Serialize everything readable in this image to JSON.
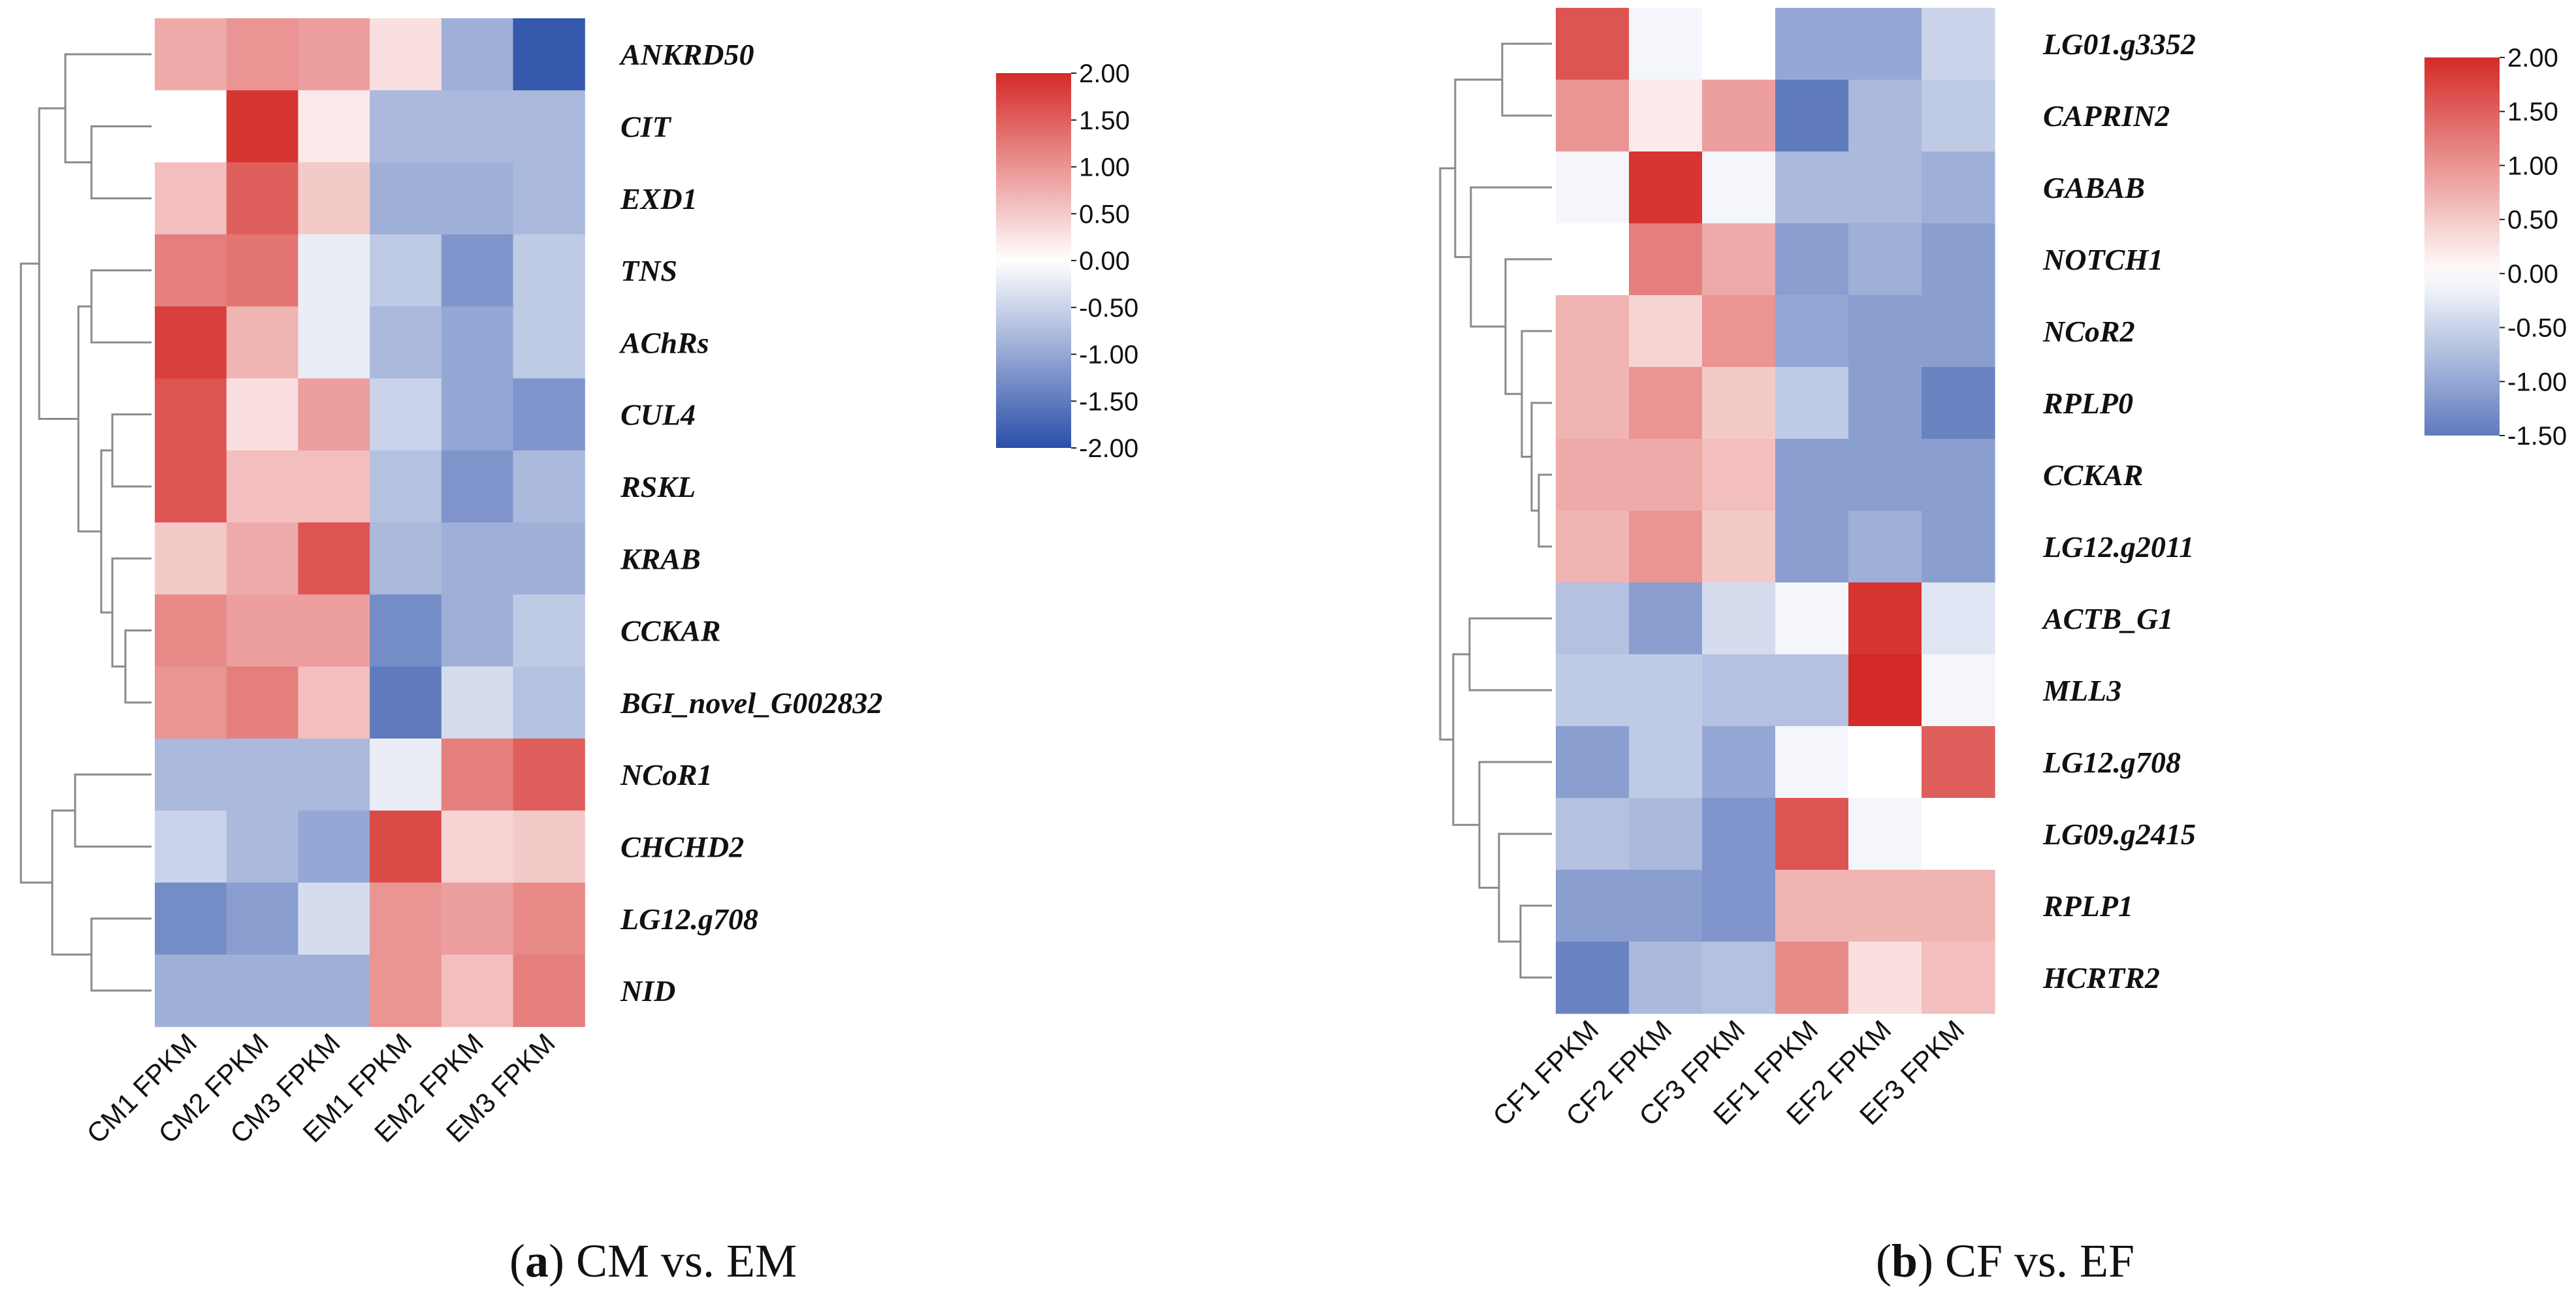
{
  "chart_data": [
    {
      "type": "heatmap",
      "caption": {
        "letter": "a",
        "open": "(",
        "close": ")",
        "text": "CM vs. EM"
      },
      "columns": [
        "CM1 FPKM",
        "CM2 FPKM",
        "CM3 FPKM",
        "EM1 FPKM",
        "EM2 FPKM",
        "EM3 FPKM"
      ],
      "rows": [
        "ANKRD50",
        "CIT",
        "EXD1",
        "TNS",
        "AChRs",
        "CUL4",
        "RSKL",
        "KRAB",
        "CCKAR",
        "BGI_novel_G002832",
        "NCoR1",
        "CHCHD2",
        "LG12.g708",
        "NID"
      ],
      "values": [
        [
          0.8,
          1.0,
          0.9,
          0.3,
          -0.9,
          -1.9
        ],
        [
          0.0,
          1.9,
          0.2,
          -0.8,
          -0.8,
          -0.8
        ],
        [
          0.6,
          1.5,
          0.5,
          -0.9,
          -0.9,
          -0.8
        ],
        [
          1.2,
          1.3,
          -0.2,
          -0.6,
          -1.2,
          -0.6
        ],
        [
          1.8,
          0.7,
          -0.2,
          -0.8,
          -1.0,
          -0.6
        ],
        [
          1.6,
          0.3,
          0.9,
          -0.5,
          -1.0,
          -1.2
        ],
        [
          1.6,
          0.6,
          0.6,
          -0.7,
          -1.2,
          -0.8
        ],
        [
          0.5,
          0.8,
          1.6,
          -0.8,
          -0.9,
          -0.9
        ],
        [
          1.1,
          0.9,
          0.9,
          -1.3,
          -0.9,
          -0.6
        ],
        [
          1.0,
          1.2,
          0.6,
          -1.5,
          -0.4,
          -0.7
        ],
        [
          -0.8,
          -0.8,
          -0.8,
          -0.2,
          1.2,
          1.5
        ],
        [
          -0.5,
          -0.8,
          -1.0,
          1.7,
          0.4,
          0.5
        ],
        [
          -1.3,
          -1.1,
          -0.4,
          1.0,
          0.9,
          1.1
        ],
        [
          -0.9,
          -0.9,
          -0.9,
          1.0,
          0.6,
          1.2
        ]
      ],
      "colorbar": {
        "min": -2.0,
        "max": 2.0,
        "ticks": [
          "2.00",
          "1.50",
          "1.00",
          "0.50",
          "0.00",
          "-0.50",
          "-1.00",
          "-1.50",
          "-2.00"
        ]
      },
      "colors": {
        "low": "#2a4fa8",
        "mid": "#ffffff",
        "high": "#d42a27"
      }
    },
    {
      "type": "heatmap",
      "caption": {
        "letter": "b",
        "open": "(",
        "close": ")",
        "text": "CF vs. EF"
      },
      "columns": [
        "CF1 FPKM",
        "CF2 FPKM",
        "CF3 FPKM",
        "EF1 FPKM",
        "EF2 FPKM",
        "EF3 FPKM"
      ],
      "rows": [
        "LG01.g3352",
        "CAPRIN2",
        "GABAB",
        "NOTCH1",
        "NCoR2",
        "RPLP0",
        "CCKAR",
        "LG12.g2011",
        "ACTB_G1",
        "MLL3",
        "LG12.g708",
        "LG09.g2415",
        "RPLP1",
        "HCRTR2"
      ],
      "values": [
        [
          1.6,
          -0.1,
          0.0,
          -1.0,
          -1.0,
          -0.5
        ],
        [
          1.0,
          0.2,
          0.9,
          -1.5,
          -0.8,
          -0.6
        ],
        [
          -0.1,
          1.9,
          -0.1,
          -0.8,
          -0.8,
          -0.9
        ],
        [
          0.0,
          1.2,
          0.8,
          -1.1,
          -0.9,
          -1.1
        ],
        [
          0.7,
          0.4,
          1.0,
          -1.0,
          -1.1,
          -1.1
        ],
        [
          0.7,
          1.0,
          0.5,
          -0.6,
          -1.1,
          -1.4
        ],
        [
          0.8,
          0.8,
          0.6,
          -1.1,
          -1.1,
          -1.1
        ],
        [
          0.7,
          1.0,
          0.5,
          -1.1,
          -0.9,
          -1.1
        ],
        [
          -0.7,
          -1.1,
          -0.4,
          -0.1,
          1.9,
          -0.3
        ],
        [
          -0.6,
          -0.6,
          -0.7,
          -0.7,
          2.0,
          -0.1
        ],
        [
          -1.1,
          -0.6,
          -1.0,
          -0.1,
          0.0,
          1.5
        ],
        [
          -0.7,
          -0.8,
          -1.2,
          1.6,
          -0.1,
          0.0
        ],
        [
          -1.1,
          -1.1,
          -1.2,
          0.7,
          0.7,
          0.7
        ],
        [
          -1.4,
          -0.8,
          -0.7,
          1.1,
          0.3,
          0.6
        ]
      ],
      "colorbar": {
        "min": -1.5,
        "max": 2.0,
        "ticks": [
          "2.00",
          "1.50",
          "1.00",
          "0.50",
          "0.00",
          "-0.50",
          "-1.00",
          "-1.50"
        ]
      },
      "colors": {
        "low": "#2a4fa8",
        "mid": "#ffffff",
        "high": "#d42a27"
      }
    }
  ]
}
